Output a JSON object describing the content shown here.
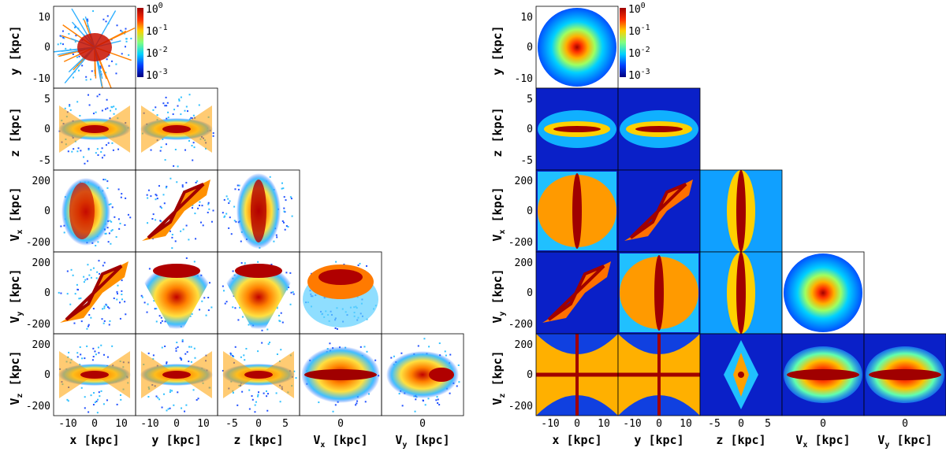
{
  "chart_data": [
    {
      "type": "heatmap",
      "panel_set": "left",
      "color_scale": "log",
      "colormap": [
        "#00007f",
        "#0040ff",
        "#00d0ff",
        "#60ff90",
        "#ffe000",
        "#ff6000",
        "#a00000"
      ],
      "colorbar": {
        "ticks": [
          "10^0",
          "10^-1",
          "10^-2",
          "10^-3"
        ],
        "range": [
          0.001,
          1
        ]
      },
      "panels": [
        {
          "row": "y",
          "col": "x",
          "pattern": "spiky-radial"
        },
        {
          "row": "z",
          "col": "x",
          "pattern": "x-star"
        },
        {
          "row": "z",
          "col": "y",
          "pattern": "x-star"
        },
        {
          "row": "Vx",
          "col": "x",
          "pattern": "broad-blob"
        },
        {
          "row": "Vx",
          "col": "y",
          "pattern": "tilted-band"
        },
        {
          "row": "Vx",
          "col": "z",
          "pattern": "vertical-ellipse"
        },
        {
          "row": "Vy",
          "col": "x",
          "pattern": "tilted-band"
        },
        {
          "row": "Vy",
          "col": "y",
          "pattern": "arch"
        },
        {
          "row": "Vy",
          "col": "z",
          "pattern": "arch"
        },
        {
          "row": "Vy",
          "col": "Vx",
          "pattern": "top-disc"
        },
        {
          "row": "Vz",
          "col": "x",
          "pattern": "x-star"
        },
        {
          "row": "Vz",
          "col": "y",
          "pattern": "x-star"
        },
        {
          "row": "Vz",
          "col": "z",
          "pattern": "x-star"
        },
        {
          "row": "Vz",
          "col": "Vx",
          "pattern": "horizontal-ellipse"
        },
        {
          "row": "Vz",
          "col": "Vy",
          "pattern": "shifted-ellipse"
        }
      ]
    },
    {
      "type": "heatmap",
      "panel_set": "right",
      "color_scale": "log",
      "colormap": [
        "#00007f",
        "#0040ff",
        "#00d0ff",
        "#60ff90",
        "#ffe000",
        "#ff6000",
        "#a00000"
      ],
      "colorbar": {
        "ticks": [
          "10^0",
          "10^-1",
          "10^-2",
          "10^-3"
        ],
        "range": [
          0.001,
          1
        ]
      },
      "panels": [
        {
          "row": "y",
          "col": "x",
          "pattern": "disc"
        },
        {
          "row": "z",
          "col": "x",
          "pattern": "thin-lens"
        },
        {
          "row": "z",
          "col": "y",
          "pattern": "thin-lens"
        },
        {
          "row": "Vx",
          "col": "x",
          "pattern": "lens-filled"
        },
        {
          "row": "Vx",
          "col": "y",
          "pattern": "tilted-band"
        },
        {
          "row": "Vx",
          "col": "z",
          "pattern": "vertical-spindle"
        },
        {
          "row": "Vy",
          "col": "x",
          "pattern": "tilted-band"
        },
        {
          "row": "Vy",
          "col": "y",
          "pattern": "lens-filled"
        },
        {
          "row": "Vy",
          "col": "z",
          "pattern": "vertical-spindle"
        },
        {
          "row": "Vy",
          "col": "Vx",
          "pattern": "disc"
        },
        {
          "row": "Vz",
          "col": "x",
          "pattern": "four-point-star"
        },
        {
          "row": "Vz",
          "col": "y",
          "pattern": "four-point-star"
        },
        {
          "row": "Vz",
          "col": "z",
          "pattern": "diamond"
        },
        {
          "row": "Vz",
          "col": "Vx",
          "pattern": "horizontal-ellipse"
        },
        {
          "row": "Vz",
          "col": "Vy",
          "pattern": "horizontal-ellipse"
        }
      ]
    }
  ],
  "axes": {
    "y": {
      "unit": "[kpc]",
      "ticks": [
        "10",
        "0",
        "-10"
      ]
    },
    "z": {
      "unit": "[kpc]",
      "ticks": [
        "5",
        "0",
        "-5"
      ]
    },
    "Vx": {
      "unit": "[kpc]",
      "ticks": [
        "200",
        "0",
        "-200"
      ]
    },
    "Vy": {
      "unit": "[kpc]",
      "ticks": [
        "200",
        "0",
        "-200"
      ]
    },
    "Vz": {
      "unit": "[kpc]",
      "ticks": [
        "200",
        "0",
        "-200"
      ]
    },
    "bottom": [
      {
        "name": "x",
        "unit": "[kpc]",
        "ticks": [
          "-10",
          "0",
          "10"
        ]
      },
      {
        "name": "y",
        "unit": "[kpc]",
        "ticks": [
          "-10",
          "0",
          "10"
        ]
      },
      {
        "name": "z",
        "unit": "[kpc]",
        "ticks": [
          "-5",
          "0",
          "5"
        ]
      },
      {
        "name": "V",
        "sub": "x",
        "unit": "[kpc]",
        "ticks": [
          "0"
        ]
      },
      {
        "name": "V",
        "sub": "y",
        "unit": "[kpc]",
        "ticks": [
          "0"
        ]
      }
    ]
  }
}
